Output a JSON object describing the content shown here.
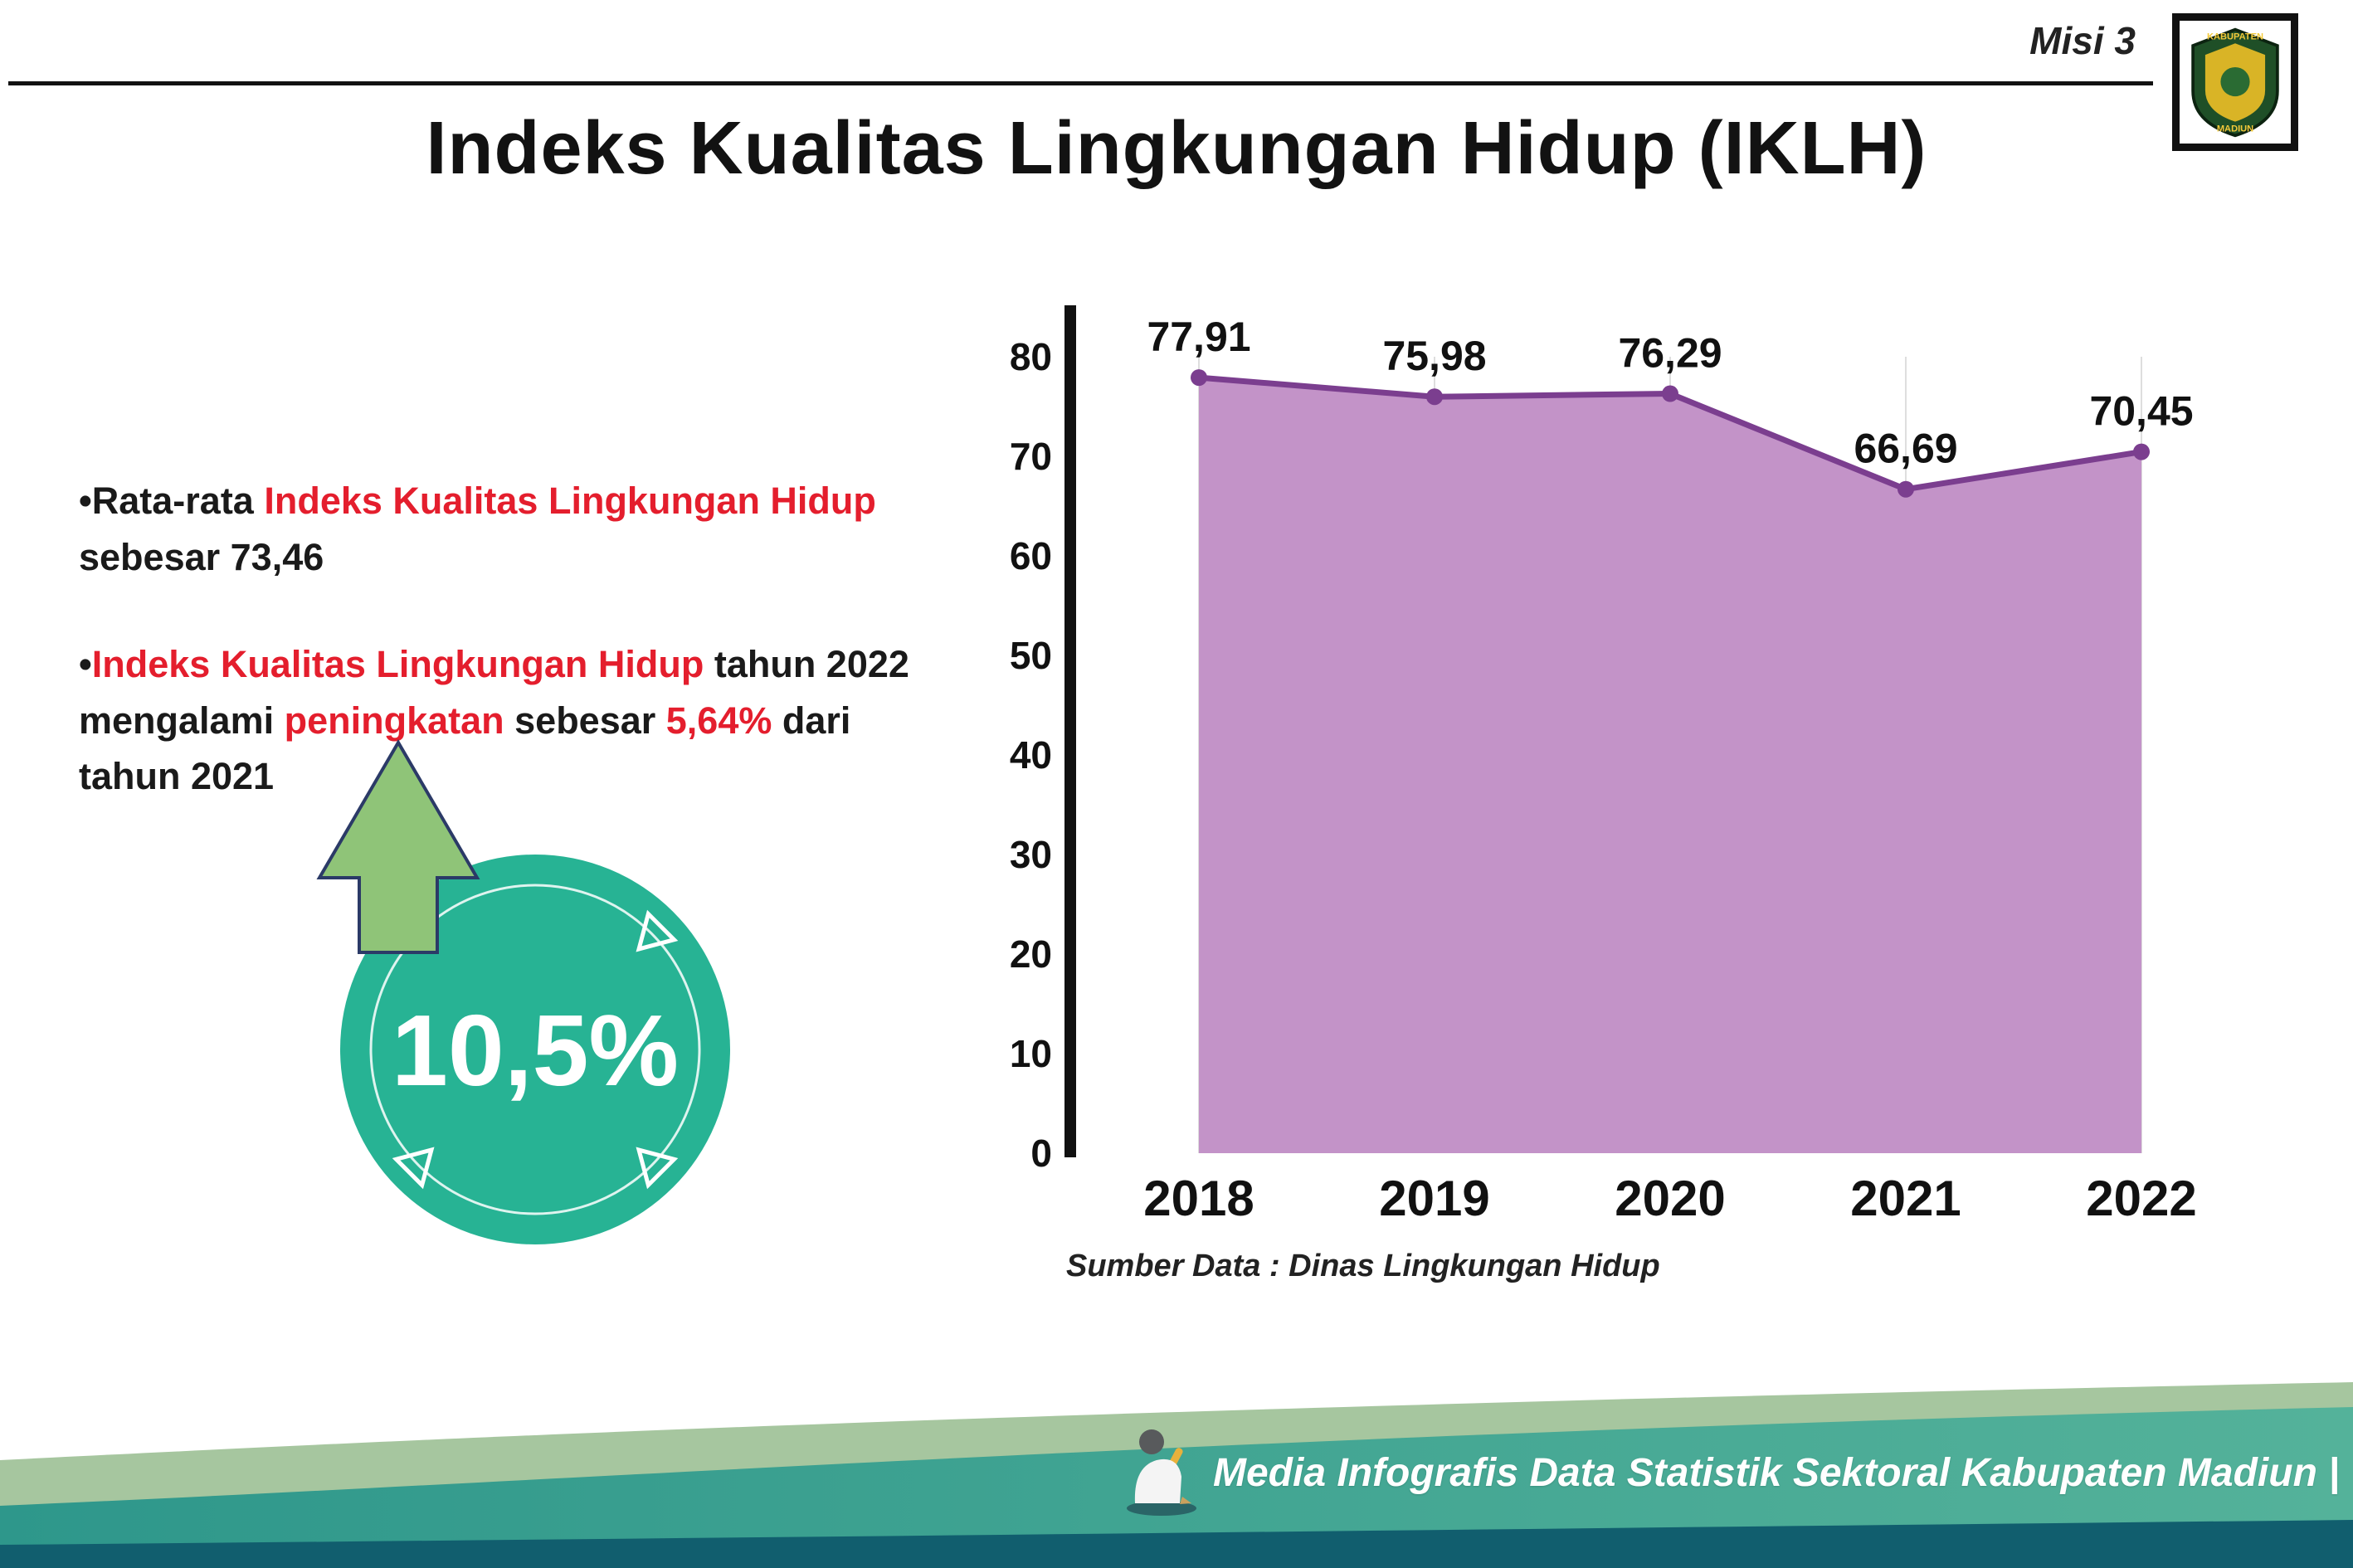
{
  "meta": {
    "misi_label": "Misi 3"
  },
  "logo": {
    "text_top": "KABUPATEN",
    "text_bottom": "MADIUN"
  },
  "header": {
    "title": "Indeks Kualitas Lingkungan Hidup (IKLH)"
  },
  "bullets": {
    "b1_pre": "•Rata-rata ",
    "b1_red": "Indeks Kualitas Lingkungan Hidup",
    "b1_post": " sebesar 73,46",
    "b2_pre": "•",
    "b2_red1": "Indeks Kualitas Lingkungan Hidup",
    "b2_t1": " tahun 2022 mengalami ",
    "b2_red2": "peningkatan",
    "b2_t2": " sebesar ",
    "b2_red3": "5,64%",
    "b2_t3": " dari tahun 2021"
  },
  "badge": {
    "value": "10,5%"
  },
  "chart_data": {
    "type": "area",
    "title": "",
    "xlabel": "",
    "ylabel": "",
    "categories": [
      "2018",
      "2019",
      "2020",
      "2021",
      "2022"
    ],
    "values": [
      77.91,
      75.98,
      76.29,
      66.69,
      70.45
    ],
    "value_labels": [
      "77,91",
      "75,98",
      "76,29",
      "66,69",
      "70,45"
    ],
    "ylim": [
      0,
      80
    ],
    "yticks": [
      0,
      10,
      20,
      30,
      40,
      50,
      60,
      70,
      80
    ],
    "grid": "vertical-light",
    "legend": "none",
    "fill_color": "#c393c8",
    "line_color": "#7b3e8f",
    "source": "Sumber Data : Dinas Lingkungan Hidup"
  },
  "footer": {
    "caption": "Media Infografis Data Statistik Sektoral Kabupaten Madiun |"
  },
  "colors": {
    "accent_red": "#e41e2d",
    "badge_teal": "#27b394",
    "arrow_green": "#8fc478",
    "footer_sage": "#a6c69f",
    "footer_teal": "#379e8d",
    "footer_dark": "#115e6e",
    "ink": "#161616"
  }
}
